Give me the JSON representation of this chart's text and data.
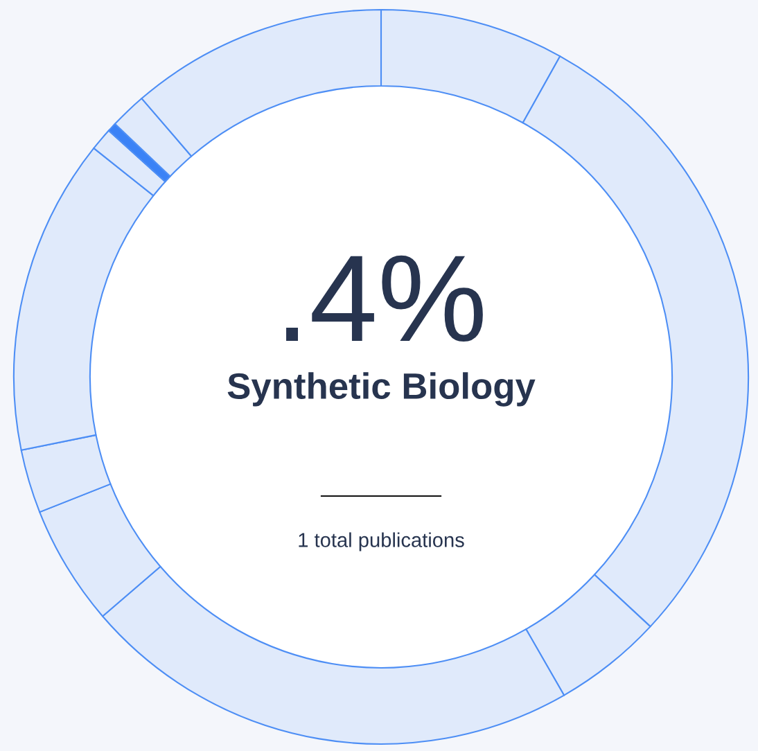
{
  "chart_data": {
    "type": "donut",
    "title": ".4%",
    "subtitle": "Synthetic Biology",
    "categories": [
      null,
      null,
      null,
      null,
      null,
      null,
      null,
      null,
      null,
      null,
      null
    ],
    "values": [
      8.1,
      28.8,
      4.8,
      22.0,
      5.3,
      2.8,
      13.9,
      1.0,
      0.4,
      1.6,
      11.3
    ],
    "colors": [
      "#e0eafb",
      "#e0eafb",
      "#e0eafb",
      "#e0eafb",
      "#e0eafb",
      "#e0eafb",
      "#e0eafb",
      "#e0eafb",
      "#3b82f6",
      "#e0eafb",
      "#e0eafb"
    ],
    "annotations": [
      "1 total publications"
    ]
  }
}
